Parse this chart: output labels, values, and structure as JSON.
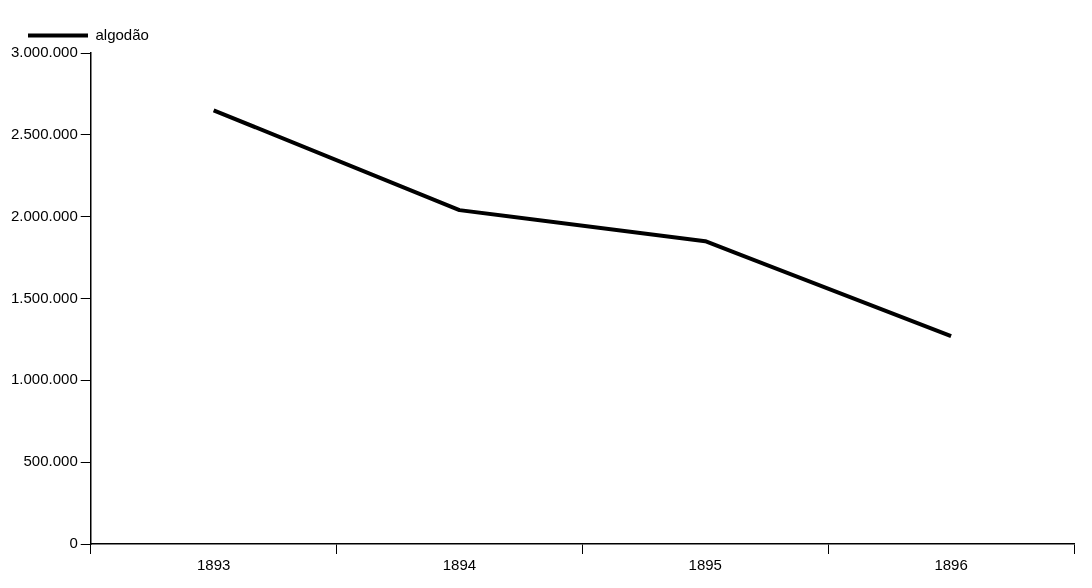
{
  "chart_data": {
    "type": "line",
    "categories": [
      "1893",
      "1894",
      "1895",
      "1896"
    ],
    "series": [
      {
        "name": "algodão",
        "color": "#000000",
        "values": [
          2650000,
          2040000,
          1850000,
          1270000
        ]
      }
    ],
    "ylim": [
      0,
      3000000
    ],
    "yticks": [
      {
        "value": 0,
        "label": "0"
      },
      {
        "value": 500000,
        "label": "500.000"
      },
      {
        "value": 1000000,
        "label": "1.000.000"
      },
      {
        "value": 1500000,
        "label": "1.500.000"
      },
      {
        "value": 2000000,
        "label": "2.000.000"
      },
      {
        "value": 2500000,
        "label": "2.500.000"
      },
      {
        "value": 3000000,
        "label": "3.000.000"
      }
    ],
    "grid": false,
    "legend": "top left",
    "marker": "none",
    "line_style": "solid"
  }
}
